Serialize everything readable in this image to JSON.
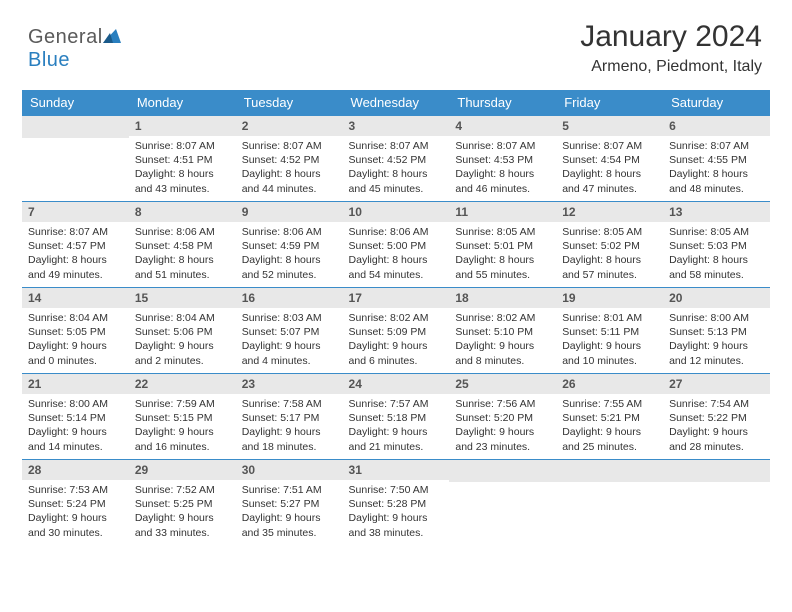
{
  "brand": {
    "part1": "General",
    "part2": "Blue"
  },
  "title": "January 2024",
  "location": "Armeno, Piedmont, Italy",
  "colors": {
    "header_bg": "#3a8cc9",
    "header_text": "#ffffff",
    "daybar_bg": "#e8e8e8",
    "border": "#3a8cc9",
    "text": "#333333"
  },
  "days": [
    "Sunday",
    "Monday",
    "Tuesday",
    "Wednesday",
    "Thursday",
    "Friday",
    "Saturday"
  ],
  "weeks": [
    [
      null,
      {
        "n": "1",
        "sr": "Sunrise: 8:07 AM",
        "ss": "Sunset: 4:51 PM",
        "dl": "Daylight: 8 hours and 43 minutes."
      },
      {
        "n": "2",
        "sr": "Sunrise: 8:07 AM",
        "ss": "Sunset: 4:52 PM",
        "dl": "Daylight: 8 hours and 44 minutes."
      },
      {
        "n": "3",
        "sr": "Sunrise: 8:07 AM",
        "ss": "Sunset: 4:52 PM",
        "dl": "Daylight: 8 hours and 45 minutes."
      },
      {
        "n": "4",
        "sr": "Sunrise: 8:07 AM",
        "ss": "Sunset: 4:53 PM",
        "dl": "Daylight: 8 hours and 46 minutes."
      },
      {
        "n": "5",
        "sr": "Sunrise: 8:07 AM",
        "ss": "Sunset: 4:54 PM",
        "dl": "Daylight: 8 hours and 47 minutes."
      },
      {
        "n": "6",
        "sr": "Sunrise: 8:07 AM",
        "ss": "Sunset: 4:55 PM",
        "dl": "Daylight: 8 hours and 48 minutes."
      }
    ],
    [
      {
        "n": "7",
        "sr": "Sunrise: 8:07 AM",
        "ss": "Sunset: 4:57 PM",
        "dl": "Daylight: 8 hours and 49 minutes."
      },
      {
        "n": "8",
        "sr": "Sunrise: 8:06 AM",
        "ss": "Sunset: 4:58 PM",
        "dl": "Daylight: 8 hours and 51 minutes."
      },
      {
        "n": "9",
        "sr": "Sunrise: 8:06 AM",
        "ss": "Sunset: 4:59 PM",
        "dl": "Daylight: 8 hours and 52 minutes."
      },
      {
        "n": "10",
        "sr": "Sunrise: 8:06 AM",
        "ss": "Sunset: 5:00 PM",
        "dl": "Daylight: 8 hours and 54 minutes."
      },
      {
        "n": "11",
        "sr": "Sunrise: 8:05 AM",
        "ss": "Sunset: 5:01 PM",
        "dl": "Daylight: 8 hours and 55 minutes."
      },
      {
        "n": "12",
        "sr": "Sunrise: 8:05 AM",
        "ss": "Sunset: 5:02 PM",
        "dl": "Daylight: 8 hours and 57 minutes."
      },
      {
        "n": "13",
        "sr": "Sunrise: 8:05 AM",
        "ss": "Sunset: 5:03 PM",
        "dl": "Daylight: 8 hours and 58 minutes."
      }
    ],
    [
      {
        "n": "14",
        "sr": "Sunrise: 8:04 AM",
        "ss": "Sunset: 5:05 PM",
        "dl": "Daylight: 9 hours and 0 minutes."
      },
      {
        "n": "15",
        "sr": "Sunrise: 8:04 AM",
        "ss": "Sunset: 5:06 PM",
        "dl": "Daylight: 9 hours and 2 minutes."
      },
      {
        "n": "16",
        "sr": "Sunrise: 8:03 AM",
        "ss": "Sunset: 5:07 PM",
        "dl": "Daylight: 9 hours and 4 minutes."
      },
      {
        "n": "17",
        "sr": "Sunrise: 8:02 AM",
        "ss": "Sunset: 5:09 PM",
        "dl": "Daylight: 9 hours and 6 minutes."
      },
      {
        "n": "18",
        "sr": "Sunrise: 8:02 AM",
        "ss": "Sunset: 5:10 PM",
        "dl": "Daylight: 9 hours and 8 minutes."
      },
      {
        "n": "19",
        "sr": "Sunrise: 8:01 AM",
        "ss": "Sunset: 5:11 PM",
        "dl": "Daylight: 9 hours and 10 minutes."
      },
      {
        "n": "20",
        "sr": "Sunrise: 8:00 AM",
        "ss": "Sunset: 5:13 PM",
        "dl": "Daylight: 9 hours and 12 minutes."
      }
    ],
    [
      {
        "n": "21",
        "sr": "Sunrise: 8:00 AM",
        "ss": "Sunset: 5:14 PM",
        "dl": "Daylight: 9 hours and 14 minutes."
      },
      {
        "n": "22",
        "sr": "Sunrise: 7:59 AM",
        "ss": "Sunset: 5:15 PM",
        "dl": "Daylight: 9 hours and 16 minutes."
      },
      {
        "n": "23",
        "sr": "Sunrise: 7:58 AM",
        "ss": "Sunset: 5:17 PM",
        "dl": "Daylight: 9 hours and 18 minutes."
      },
      {
        "n": "24",
        "sr": "Sunrise: 7:57 AM",
        "ss": "Sunset: 5:18 PM",
        "dl": "Daylight: 9 hours and 21 minutes."
      },
      {
        "n": "25",
        "sr": "Sunrise: 7:56 AM",
        "ss": "Sunset: 5:20 PM",
        "dl": "Daylight: 9 hours and 23 minutes."
      },
      {
        "n": "26",
        "sr": "Sunrise: 7:55 AM",
        "ss": "Sunset: 5:21 PM",
        "dl": "Daylight: 9 hours and 25 minutes."
      },
      {
        "n": "27",
        "sr": "Sunrise: 7:54 AM",
        "ss": "Sunset: 5:22 PM",
        "dl": "Daylight: 9 hours and 28 minutes."
      }
    ],
    [
      {
        "n": "28",
        "sr": "Sunrise: 7:53 AM",
        "ss": "Sunset: 5:24 PM",
        "dl": "Daylight: 9 hours and 30 minutes."
      },
      {
        "n": "29",
        "sr": "Sunrise: 7:52 AM",
        "ss": "Sunset: 5:25 PM",
        "dl": "Daylight: 9 hours and 33 minutes."
      },
      {
        "n": "30",
        "sr": "Sunrise: 7:51 AM",
        "ss": "Sunset: 5:27 PM",
        "dl": "Daylight: 9 hours and 35 minutes."
      },
      {
        "n": "31",
        "sr": "Sunrise: 7:50 AM",
        "ss": "Sunset: 5:28 PM",
        "dl": "Daylight: 9 hours and 38 minutes."
      },
      null,
      null,
      null
    ]
  ]
}
